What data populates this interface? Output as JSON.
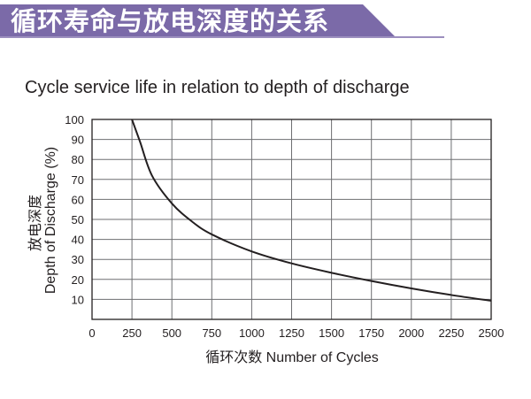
{
  "banner": {
    "title": "循环寿命与放电深度的关系",
    "color": "#7b6aa8"
  },
  "chart_data": {
    "type": "line",
    "title": "Cycle service life in relation to depth of discharge",
    "xlabel": "循环次数 Number of Cycles",
    "ylabel_cn": "放电深度",
    "ylabel": "Depth of Discharge (%)",
    "xlim": [
      0,
      2500
    ],
    "ylim": [
      0,
      100
    ],
    "xticks": [
      0,
      250,
      500,
      750,
      1000,
      1250,
      1500,
      1750,
      2000,
      2250,
      2500
    ],
    "yticks": [
      10,
      20,
      30,
      40,
      50,
      60,
      70,
      80,
      90,
      100
    ],
    "grid": true,
    "series": [
      {
        "x": [
          250,
          300,
          375,
          500,
          625,
          750,
          1000,
          1250,
          1500,
          1750,
          2000,
          2250,
          2500
        ],
        "y": [
          100,
          89,
          72,
          58,
          49,
          42.5,
          34,
          28,
          23.3,
          19.2,
          15.5,
          12.2,
          9.3
        ],
        "color": "#231f20"
      }
    ]
  }
}
